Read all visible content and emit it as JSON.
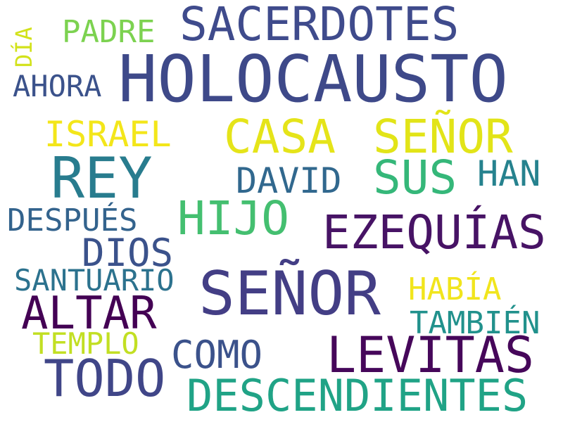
{
  "words": [
    {
      "text": "SACERDOTES",
      "color": "#3f4b8c"
    },
    {
      "text": "PADRE",
      "color": "#7cd250"
    },
    {
      "text": "DÍA",
      "color": "#d2e21b"
    },
    {
      "text": "AHORA",
      "color": "#3b528b"
    },
    {
      "text": "HOLOCAUSTO",
      "color": "#3e4989"
    },
    {
      "text": "ISRAEL",
      "color": "#f3e61a"
    },
    {
      "text": "CASA",
      "color": "#e5e419"
    },
    {
      "text": "SEÑOR",
      "color": "#e2e418"
    },
    {
      "text": "REY",
      "color": "#287c8e"
    },
    {
      "text": "DAVID",
      "color": "#31688e"
    },
    {
      "text": "SUS",
      "color": "#35b779"
    },
    {
      "text": "HAN",
      "color": "#26828e"
    },
    {
      "text": "HIJO",
      "color": "#44bf70"
    },
    {
      "text": "DESPUÉS",
      "color": "#33638d"
    },
    {
      "text": "EZEQUÍAS",
      "color": "#471365"
    },
    {
      "text": "DIOS",
      "color": "#3b528b"
    },
    {
      "text": "SANTUARIO",
      "color": "#2c728e"
    },
    {
      "text": "SEÑOR",
      "color": "#433e85"
    },
    {
      "text": "HABÍA",
      "color": "#f1e51d"
    },
    {
      "text": "ALTAR",
      "color": "#440154"
    },
    {
      "text": "TAMBIÉN",
      "color": "#21918c"
    },
    {
      "text": "TEMPLO",
      "color": "#c2df23"
    },
    {
      "text": "COMO",
      "color": "#3b528b"
    },
    {
      "text": "LEVITAS",
      "color": "#46075a"
    },
    {
      "text": "TODO",
      "color": "#404688"
    },
    {
      "text": "DESCENDIENTES",
      "color": "#20a386"
    }
  ]
}
